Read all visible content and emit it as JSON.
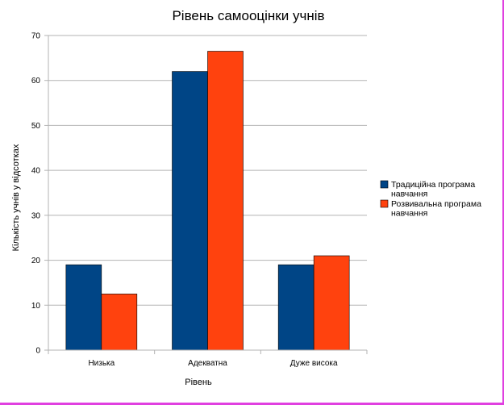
{
  "chart_data": {
    "type": "bar",
    "title": "Рівень самооцінки учнів",
    "xlabel": "Рівень",
    "ylabel": "Кількість учнів у відсотках",
    "categories": [
      "Низька",
      "Адекватна",
      "Дуже висока"
    ],
    "series": [
      {
        "name": "Традиційна програма навчання",
        "color": "#004586",
        "values": [
          19,
          62,
          19
        ]
      },
      {
        "name": "Розвивальна програма навчання",
        "color": "#ff420e",
        "values": [
          12.5,
          66.5,
          21
        ]
      }
    ],
    "ylim": [
      0,
      70
    ],
    "yticks": [
      0,
      10,
      20,
      30,
      40,
      50,
      60,
      70
    ],
    "grid": true,
    "legend_position": "right"
  }
}
